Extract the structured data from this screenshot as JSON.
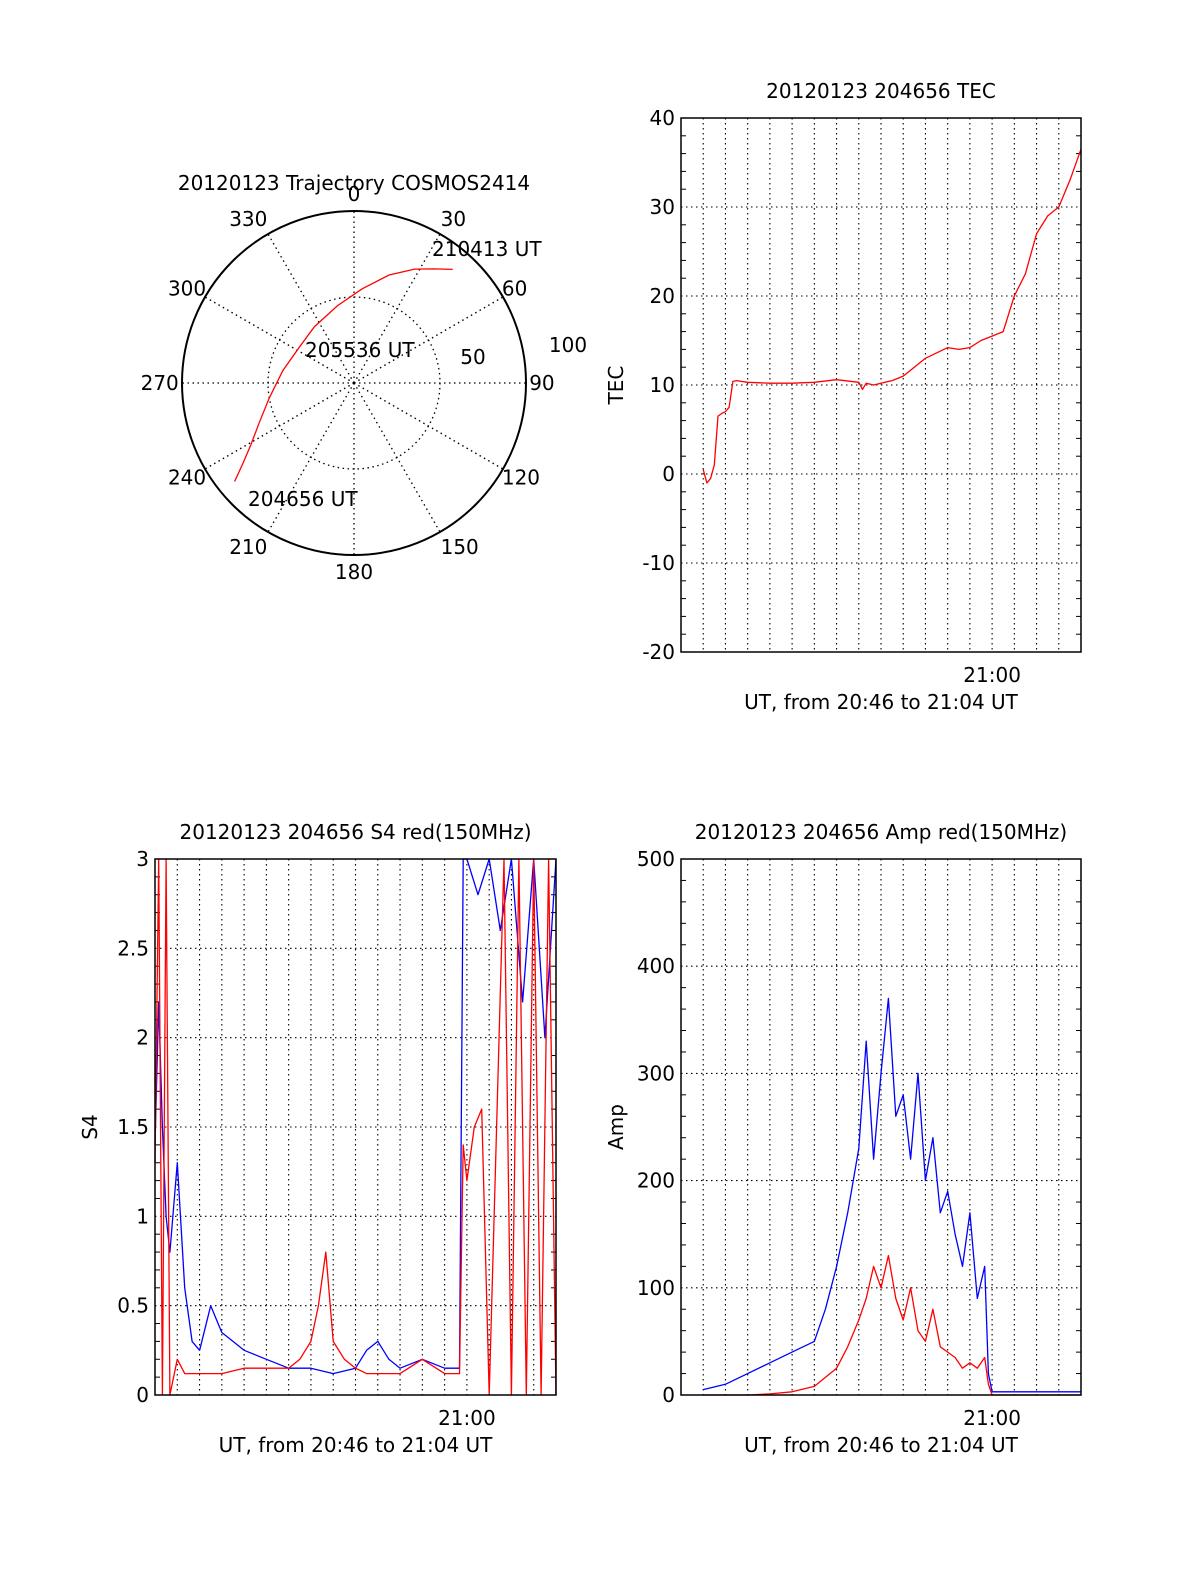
{
  "chart_data": [
    {
      "type": "polar",
      "title": "20120123 Trajectory COSMOS2414",
      "theta_labels": [
        "0",
        "30",
        "60",
        "90",
        "120",
        "150",
        "180",
        "210",
        "240",
        "270",
        "300",
        "330"
      ],
      "radial_labels": [
        "50",
        "100"
      ],
      "rlim": [
        0,
        100
      ],
      "grid": true,
      "series": [
        {
          "color": "#ff0000",
          "r_points": [
            {
              "theta": 230.5,
              "r": 90
            },
            {
              "theta": 234,
              "r": 80
            },
            {
              "theta": 239,
              "r": 70
            },
            {
              "theta": 247,
              "r": 60
            },
            {
              "theta": 260,
              "r": 50
            },
            {
              "theta": 280,
              "r": 42
            },
            {
              "theta": 303,
              "r": 38
            },
            {
              "theta": 325,
              "r": 40
            },
            {
              "theta": 348,
              "r": 46
            },
            {
              "theta": 5,
              "r": 55
            },
            {
              "theta": 18,
              "r": 66
            },
            {
              "theta": 28,
              "r": 75
            },
            {
              "theta": 35,
              "r": 81
            },
            {
              "theta": 41,
              "r": 87.5
            }
          ]
        }
      ],
      "annotations": [
        {
          "text": "210413 UT",
          "theta": 40,
          "r": 92
        },
        {
          "text": "205536 UT",
          "theta": 290,
          "r": 20
        },
        {
          "text": "204656 UT",
          "theta": 218,
          "r": 84
        }
      ]
    },
    {
      "type": "line",
      "title": "20120123 204656 TEC",
      "xlabel": "UT, from 20:46 to 21:04 UT",
      "ylabel": "TEC",
      "xlim": [
        "20:46:00",
        "21:04:00"
      ],
      "ylim": [
        -20,
        40
      ],
      "yticks": [
        -20,
        -10,
        0,
        10,
        20,
        30,
        40
      ],
      "xtick_labels": [
        {
          "x": "21:00:00",
          "label": "21:00"
        }
      ],
      "grid": true,
      "series": [
        {
          "color": "#ff0000",
          "x": [
            "20:47:00",
            "20:47:10",
            "20:47:20",
            "20:47:30",
            "20:47:40",
            "20:47:50",
            "20:48:00",
            "20:48:10",
            "20:48:20",
            "20:48:30",
            "20:49:00",
            "20:50:00",
            "20:51:00",
            "20:52:00",
            "20:53:00",
            "20:54:00",
            "20:54:10",
            "20:54:20",
            "20:54:40",
            "20:55:00",
            "20:55:30",
            "20:56:00",
            "20:56:30",
            "20:57:00",
            "20:58:00",
            "20:58:30",
            "20:59:00",
            "20:59:30",
            "21:00:00",
            "21:00:30",
            "21:01:00",
            "21:01:30",
            "21:02:00",
            "21:02:30",
            "21:03:00",
            "21:03:30",
            "21:04:00"
          ],
          "y": [
            0.5,
            -1,
            -0.5,
            1,
            6.5,
            6.8,
            7,
            7.5,
            10.4,
            10.5,
            10.3,
            10.2,
            10.2,
            10.3,
            10.6,
            10.3,
            9.5,
            10.2,
            10,
            10.2,
            10.5,
            11,
            12,
            13,
            14.2,
            14,
            14.2,
            15,
            15.5,
            16,
            20,
            22.5,
            27,
            29,
            30,
            33,
            36.5
          ]
        }
      ]
    },
    {
      "type": "line",
      "title": "20120123 204656 S4 red(150MHz)",
      "xlabel": "UT, from 20:46 to 21:04 UT",
      "ylabel": "S4",
      "xlim": [
        "20:46:00",
        "21:04:00"
      ],
      "ylim": [
        0,
        3
      ],
      "yticks": [
        0,
        0.5,
        1,
        1.5,
        2,
        2.5,
        3
      ],
      "xtick_labels": [
        {
          "x": "21:00:00",
          "label": "21:00"
        }
      ],
      "grid": true,
      "series": [
        {
          "color": "#0000ff",
          "x": [
            "20:46:00",
            "20:46:10",
            "20:46:20",
            "20:46:30",
            "20:46:40",
            "20:47:00",
            "20:47:20",
            "20:47:40",
            "20:48:00",
            "20:48:30",
            "20:49:00",
            "20:49:30",
            "20:50:00",
            "20:51:00",
            "20:52:00",
            "20:53:00",
            "20:54:00",
            "20:55:00",
            "20:55:30",
            "20:56:00",
            "20:56:30",
            "20:57:00",
            "20:58:00",
            "20:59:00",
            "20:59:40",
            "20:59:50",
            "21:00:00",
            "21:00:30",
            "21:01:00",
            "21:01:30",
            "21:02:00",
            "21:02:30",
            "21:03:00",
            "21:03:30",
            "21:04:00"
          ],
          "y": [
            1.4,
            2.2,
            1.5,
            1.0,
            0.8,
            1.3,
            0.6,
            0.3,
            0.25,
            0.5,
            0.35,
            0.3,
            0.25,
            0.2,
            0.15,
            0.15,
            0.12,
            0.15,
            0.25,
            0.3,
            0.2,
            0.15,
            0.2,
            0.15,
            0.15,
            3.0,
            3.0,
            2.8,
            3.0,
            2.6,
            3.0,
            2.2,
            3.0,
            2.0,
            3.0
          ]
        },
        {
          "color": "#ff0000",
          "x": [
            "20:46:00",
            "20:46:10",
            "20:46:20",
            "20:46:30",
            "20:46:40",
            "20:47:00",
            "20:47:20",
            "20:47:40",
            "20:48:00",
            "20:49:00",
            "20:50:00",
            "20:51:00",
            "20:52:00",
            "20:52:30",
            "20:53:00",
            "20:53:20",
            "20:53:40",
            "20:54:00",
            "20:54:30",
            "20:55:00",
            "20:55:30",
            "20:56:00",
            "20:57:00",
            "20:58:00",
            "20:59:00",
            "20:59:40",
            "20:59:50",
            "21:00:00",
            "21:00:20",
            "21:00:40",
            "21:01:00",
            "21:01:20",
            "21:01:40",
            "21:02:00",
            "21:02:20",
            "21:02:40",
            "21:03:00",
            "21:03:20",
            "21:03:40",
            "21:04:00"
          ],
          "y": [
            1.3,
            3.0,
            0.0,
            3.0,
            0.0,
            0.2,
            0.12,
            0.12,
            0.12,
            0.12,
            0.15,
            0.15,
            0.15,
            0.2,
            0.3,
            0.5,
            0.8,
            0.3,
            0.2,
            0.15,
            0.12,
            0.12,
            0.12,
            0.2,
            0.12,
            0.12,
            1.4,
            1.2,
            1.5,
            1.6,
            0.0,
            1.5,
            3.0,
            0.0,
            3.0,
            0.0,
            3.0,
            0.0,
            3.0,
            0.0
          ]
        }
      ]
    },
    {
      "type": "line",
      "title": "20120123 204656 Amp red(150MHz)",
      "xlabel": "UT, from 20:46 to 21:04 UT",
      "ylabel": "Amp",
      "xlim": [
        "20:46:00",
        "21:04:00"
      ],
      "ylim": [
        0,
        500
      ],
      "yticks": [
        0,
        100,
        200,
        300,
        400,
        500
      ],
      "xtick_labels": [
        {
          "x": "21:00:00",
          "label": "21:00"
        }
      ],
      "grid": true,
      "series": [
        {
          "color": "#0000ff",
          "x": [
            "20:47:00",
            "20:48:00",
            "20:49:00",
            "20:50:00",
            "20:51:00",
            "20:52:00",
            "20:52:30",
            "20:53:00",
            "20:53:30",
            "20:54:00",
            "20:54:20",
            "20:54:40",
            "20:55:00",
            "20:55:20",
            "20:55:40",
            "20:56:00",
            "20:56:20",
            "20:56:40",
            "20:57:00",
            "20:57:20",
            "20:57:40",
            "20:58:00",
            "20:58:20",
            "20:58:40",
            "20:59:00",
            "20:59:20",
            "20:59:40",
            "20:59:50",
            "21:00:00",
            "21:01:00",
            "21:02:00",
            "21:03:00",
            "21:04:00"
          ],
          "y": [
            5,
            10,
            20,
            30,
            40,
            50,
            80,
            120,
            170,
            230,
            330,
            220,
            300,
            370,
            260,
            280,
            220,
            300,
            200,
            240,
            170,
            190,
            150,
            120,
            170,
            90,
            120,
            20,
            3,
            3,
            3,
            3,
            3
          ]
        },
        {
          "color": "#ff0000",
          "x": [
            "20:47:00",
            "20:48:00",
            "20:49:00",
            "20:50:00",
            "20:51:00",
            "20:52:00",
            "20:53:00",
            "20:53:30",
            "20:54:00",
            "20:54:20",
            "20:54:40",
            "20:55:00",
            "20:55:20",
            "20:55:40",
            "20:56:00",
            "20:56:20",
            "20:56:40",
            "20:57:00",
            "20:57:20",
            "20:57:40",
            "20:58:00",
            "20:58:20",
            "20:58:40",
            "20:59:00",
            "20:59:20",
            "20:59:40",
            "20:59:50",
            "21:00:00",
            "21:01:00",
            "21:02:00",
            "21:03:00",
            "21:04:00"
          ],
          "y": [
            0,
            0,
            0,
            1,
            3,
            8,
            25,
            45,
            70,
            90,
            120,
            100,
            130,
            90,
            70,
            100,
            60,
            50,
            80,
            45,
            40,
            35,
            25,
            30,
            25,
            35,
            10,
            0,
            0,
            0,
            0,
            0
          ]
        }
      ]
    }
  ]
}
